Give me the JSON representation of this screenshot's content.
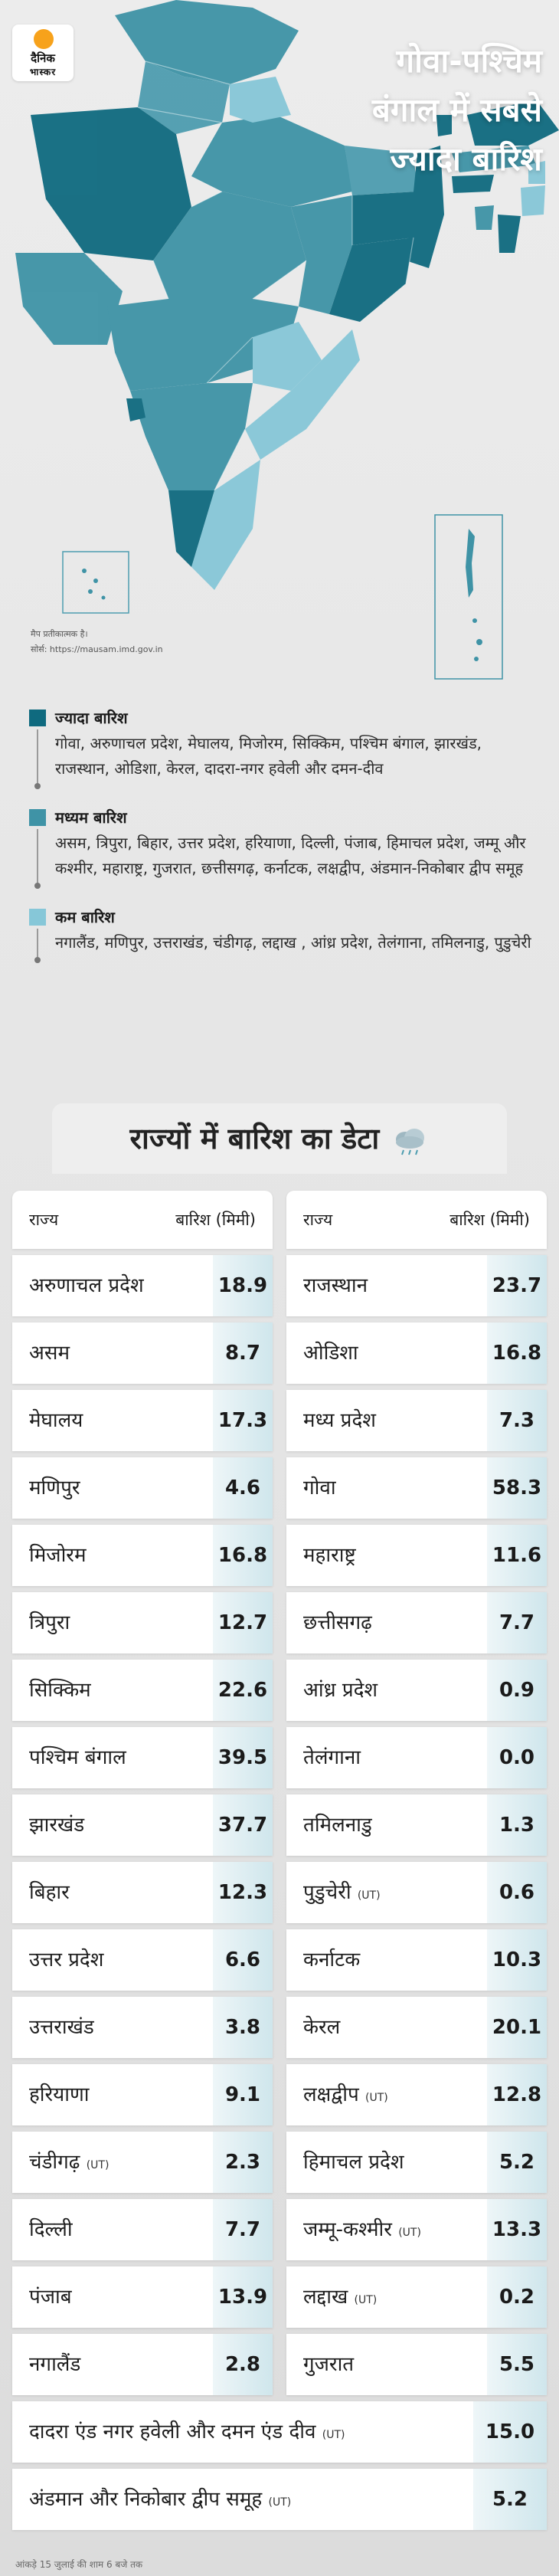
{
  "brand": {
    "line1": "दैनिक",
    "line2": "भास्कर"
  },
  "headline": {
    "line1": "गोवा-पश्चिम",
    "line2": "बंगाल में सबसे",
    "line3": "ज्यादा बारिश"
  },
  "colors": {
    "high": "#0f6a7f",
    "medium": "#3f93a6",
    "low": "#86c7d8",
    "map_bg": "#d9d9d9"
  },
  "map": {
    "note": "मैप प्रतीकात्मक है।",
    "source": "सोर्स: https://mausam.imd.gov.in"
  },
  "legend": [
    {
      "title": "ज्यादा बारिश",
      "text": "गोवा, अरुणाचल प्रदेश, मेघालय, मिजोरम, सिक्किम, पश्चिम बंगाल, झारखंड, राजस्थान, ओडिशा, केरल, दादरा-नगर हवेली और दमन-दीव"
    },
    {
      "title": "मध्यम बारिश",
      "text": "असम, त्रिपुरा, बिहार, उत्तर प्रदेश, हरियाणा, दिल्ली, पंजाब, हिमाचल प्रदेश, जम्मू और कश्मीर, महाराष्ट्र, गुजरात, छत्तीसगढ़, कर्नाटक, लक्षद्वीप, अंडमान-निकोबार द्वीप समूह"
    },
    {
      "title": "कम बारिश",
      "text": "नगालैंड, मणिपुर, उत्तराखंड, चंडीगढ़, लद्दाख , आंध्र प्रदेश, तेलंगाना, तमिलनाडु, पुडुचेरी"
    }
  ],
  "table": {
    "title": "राज्यों में बारिश का डेटा",
    "header_state": "राज्य",
    "header_rain": "बारिश (मिमी)",
    "left": [
      {
        "state": "अरुणाचल प्रदेश",
        "ut": "",
        "value": "18.9"
      },
      {
        "state": "असम",
        "ut": "",
        "value": "8.7"
      },
      {
        "state": "मेघालय",
        "ut": "",
        "value": "17.3"
      },
      {
        "state": "मणिपुर",
        "ut": "",
        "value": "4.6"
      },
      {
        "state": "मिजोरम",
        "ut": "",
        "value": "16.8"
      },
      {
        "state": "त्रिपुरा",
        "ut": "",
        "value": "12.7"
      },
      {
        "state": "सिक्किम",
        "ut": "",
        "value": "22.6"
      },
      {
        "state": "पश्चिम बंगाल",
        "ut": "",
        "value": "39.5"
      },
      {
        "state": "झारखंड",
        "ut": "",
        "value": "37.7"
      },
      {
        "state": "बिहार",
        "ut": "",
        "value": "12.3"
      },
      {
        "state": "उत्तर प्रदेश",
        "ut": "",
        "value": "6.6"
      },
      {
        "state": "उत्तराखंड",
        "ut": "",
        "value": "3.8"
      },
      {
        "state": "हरियाणा",
        "ut": "",
        "value": "9.1"
      },
      {
        "state": "चंडीगढ़",
        "ut": "(UT)",
        "value": "2.3"
      },
      {
        "state": "दिल्ली",
        "ut": "",
        "value": "7.7"
      },
      {
        "state": "पंजाब",
        "ut": "",
        "value": "13.9"
      },
      {
        "state": "नगालैंड",
        "ut": "",
        "value": "2.8"
      }
    ],
    "right": [
      {
        "state": "राजस्थान",
        "ut": "",
        "value": "23.7"
      },
      {
        "state": "ओडिशा",
        "ut": "",
        "value": "16.8"
      },
      {
        "state": "मध्य प्रदेश",
        "ut": "",
        "value": "7.3"
      },
      {
        "state": "गोवा",
        "ut": "",
        "value": "58.3"
      },
      {
        "state": "महाराष्ट्र",
        "ut": "",
        "value": "11.6"
      },
      {
        "state": "छत्तीसगढ़",
        "ut": "",
        "value": "7.7"
      },
      {
        "state": "आंध्र प्रदेश",
        "ut": "",
        "value": "0.9"
      },
      {
        "state": "तेलंगाना",
        "ut": "",
        "value": "0.0"
      },
      {
        "state": "तमिलनाडु",
        "ut": "",
        "value": "1.3"
      },
      {
        "state": "पुडुचेरी",
        "ut": "(UT)",
        "value": "0.6"
      },
      {
        "state": "कर्नाटक",
        "ut": "",
        "value": "10.3"
      },
      {
        "state": "केरल",
        "ut": "",
        "value": "20.1"
      },
      {
        "state": "लक्षद्वीप",
        "ut": "(UT)",
        "value": "12.8"
      },
      {
        "state": "हिमाचल प्रदेश",
        "ut": "",
        "value": "5.2"
      },
      {
        "state": "जम्मू-कश्मीर",
        "ut": "(UT)",
        "value": "13.3"
      },
      {
        "state": "लद्दाख",
        "ut": "(UT)",
        "value": "0.2"
      },
      {
        "state": "गुजरात",
        "ut": "",
        "value": "5.5"
      }
    ],
    "wide": [
      {
        "state": "दादरा एंड नगर हवेली और दमन एंड दीव",
        "ut": "(UT)",
        "value": "15.0"
      },
      {
        "state": "अंडमान और निकोबार द्वीप समूह",
        "ut": "(UT)",
        "value": "5.2"
      }
    ]
  },
  "footnote": "आंकड़े 15 जुलाई की शाम 6 बजे तक"
}
